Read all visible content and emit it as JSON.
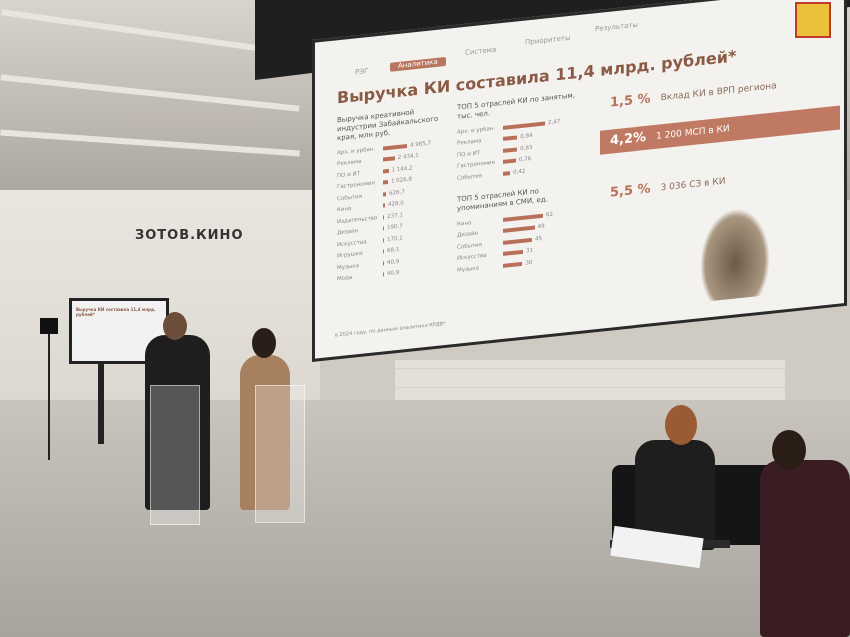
{
  "wall_sign": "ЗОТОВ.КИНО",
  "slide": {
    "nav": [
      "РЭГ",
      "Аналитика",
      "Система",
      "Приоритеты",
      "Результаты"
    ],
    "title": "Выручка КИ составила 11,4 млрд. рублей*",
    "revenue": {
      "heading": "Выручка креативной индустрии Забайкальского края, млн руб.",
      "rows": [
        {
          "label": "Арх. и урбан.",
          "value": "4 985,7",
          "num": 4985.7
        },
        {
          "label": "Реклама",
          "value": "2 434,1",
          "num": 2434.1
        },
        {
          "label": "ПО и ИТ",
          "value": "1 144,2",
          "num": 1144.2
        },
        {
          "label": "Гастрономия",
          "value": "1 026,8",
          "num": 1026.8
        },
        {
          "label": "События",
          "value": "626,7",
          "num": 626.7
        },
        {
          "label": "Кино",
          "value": "428,0",
          "num": 428.0
        },
        {
          "label": "Издательство",
          "value": "237,1",
          "num": 237.1
        },
        {
          "label": "Дизайн",
          "value": "190,7",
          "num": 190.7
        },
        {
          "label": "Искусства",
          "value": "170,1",
          "num": 170.1
        },
        {
          "label": "Игрушки",
          "value": "68,1",
          "num": 68.1
        },
        {
          "label": "Музыка",
          "value": "40,9",
          "num": 40.9
        },
        {
          "label": "Мода",
          "value": "40,9",
          "num": 40.9
        }
      ]
    },
    "employment": {
      "heading": "ТОП 5 отраслей КИ по занятым, тыс. чел.",
      "rows": [
        {
          "label": "Арх. и урбан.",
          "value": "2,47",
          "num": 2.47
        },
        {
          "label": "Реклама",
          "value": "0,84",
          "num": 0.84
        },
        {
          "label": "ПО и ИТ",
          "value": "0,83",
          "num": 0.83
        },
        {
          "label": "Гастрономия",
          "value": "0,76",
          "num": 0.76
        },
        {
          "label": "События",
          "value": "0,42",
          "num": 0.42
        }
      ]
    },
    "media": {
      "heading": "ТОП 5 отраслей КИ по упоминаниям в СМИ, ед.",
      "rows": [
        {
          "label": "Кино",
          "value": "62",
          "num": 62
        },
        {
          "label": "Дизайн",
          "value": "49",
          "num": 49
        },
        {
          "label": "События",
          "value": "45",
          "num": 45
        },
        {
          "label": "Искусства",
          "value": "31",
          "num": 31
        },
        {
          "label": "Музыка",
          "value": "30",
          "num": 30
        }
      ]
    },
    "stats": [
      {
        "pct": "1,5 %",
        "text": "Вклад КИ в ВРП региона"
      },
      {
        "pct": "4,2%",
        "text": "1 200 МСП в КИ"
      },
      {
        "pct": "5,5 %",
        "text": "3 036 СЗ в КИ"
      }
    ],
    "footnote": "в 2024 году, по данным аналитики КРДВ*",
    "accent": "#b9705a"
  },
  "monitor": {
    "title": "Выручка КИ составила 11,4 млрд. рублей*"
  }
}
